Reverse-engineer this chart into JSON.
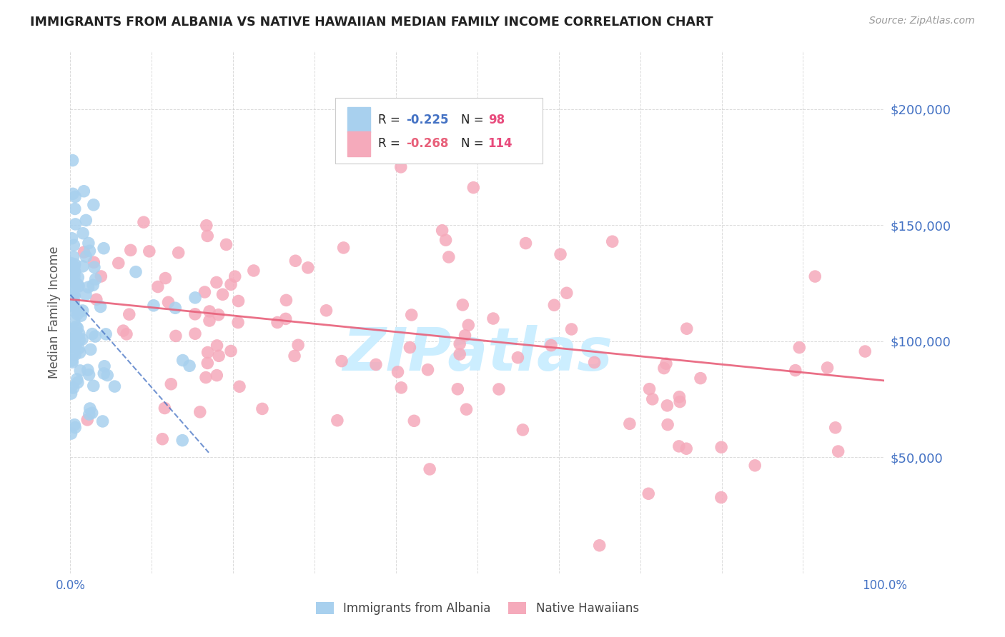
{
  "title": "IMMIGRANTS FROM ALBANIA VS NATIVE HAWAIIAN MEDIAN FAMILY INCOME CORRELATION CHART",
  "source": "Source: ZipAtlas.com",
  "ylabel": "Median Family Income",
  "ylim": [
    0,
    225000
  ],
  "xlim": [
    0,
    1.0
  ],
  "legend_r1": "R = -0.225",
  "legend_n1": "N = 98",
  "legend_r2": "R = -0.268",
  "legend_n2": "N = 114",
  "series1_label": "Immigrants from Albania",
  "series2_label": "Native Hawaiians",
  "series1_color": "#A8D0EE",
  "series2_color": "#F5AABB",
  "series1_line_color": "#4472C4",
  "series2_line_color": "#E8607A",
  "background_color": "#FFFFFF",
  "watermark": "ZIPatlas",
  "watermark_color": "#CCEEFF",
  "ytick_label_color": "#4472C4",
  "grid_color": "#CCCCCC"
}
